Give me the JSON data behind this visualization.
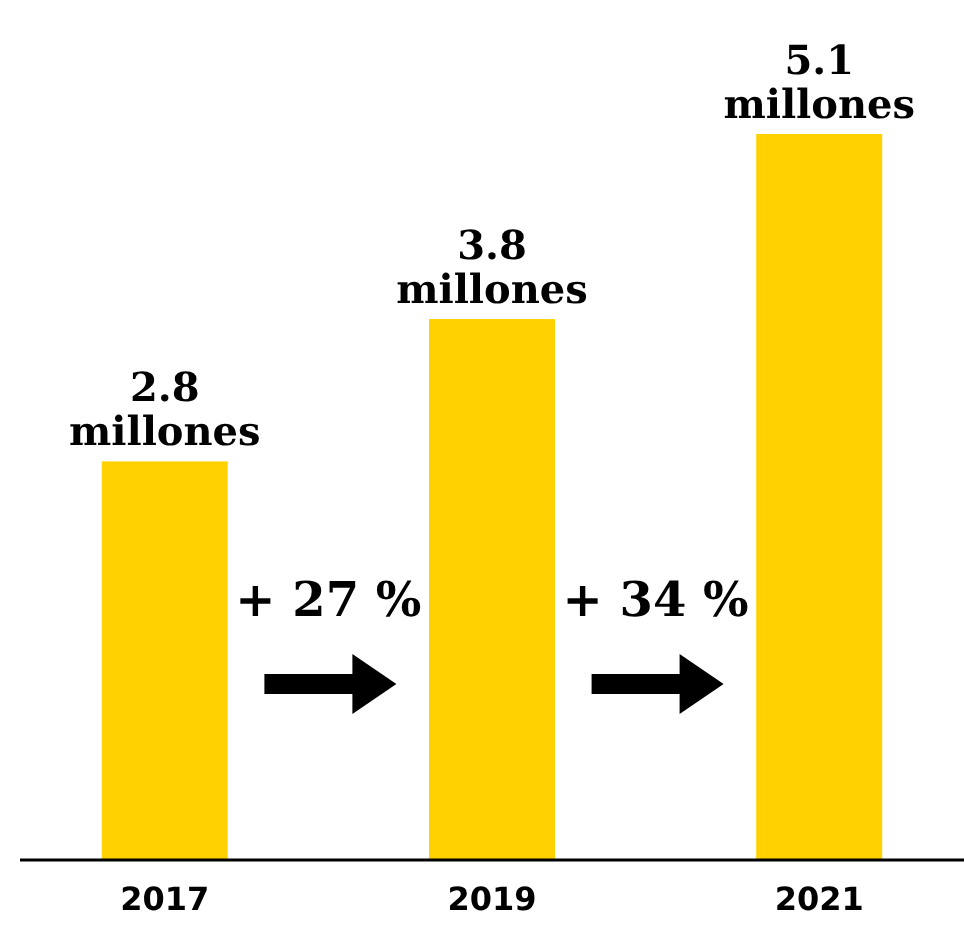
{
  "chart_data": {
    "type": "bar",
    "categories": [
      "2017",
      "2019",
      "2021"
    ],
    "values": [
      2.8,
      3.8,
      5.1
    ],
    "color": "#ffd100",
    "value_labels": [
      "2.8 millones",
      "3.8 millones",
      "5.1 millones"
    ],
    "tick_labels": "x",
    "annotations": [
      "+ 27 %",
      "+ 34 %"
    ]
  }
}
